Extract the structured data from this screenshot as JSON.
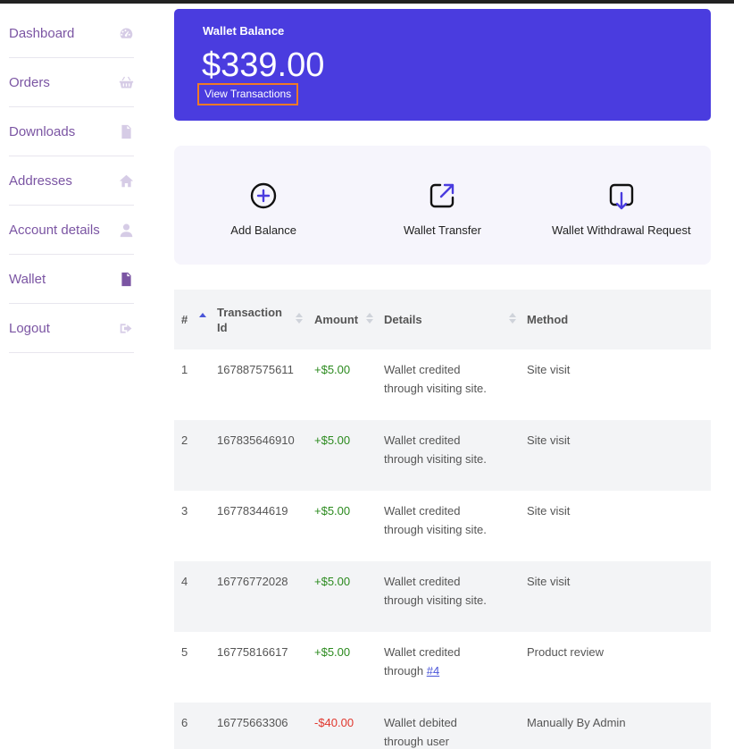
{
  "sidebar": {
    "items": [
      {
        "label": "Dashboard",
        "icon": "dashboard-gauge-icon"
      },
      {
        "label": "Orders",
        "icon": "basket-icon"
      },
      {
        "label": "Downloads",
        "icon": "file-download-icon"
      },
      {
        "label": "Addresses",
        "icon": "home-icon"
      },
      {
        "label": "Account details",
        "icon": "user-icon"
      },
      {
        "label": "Wallet",
        "icon": "file-icon",
        "active": true
      },
      {
        "label": "Logout",
        "icon": "sign-out-icon"
      }
    ]
  },
  "wallet": {
    "title": "Wallet Balance",
    "amount": "$339.00",
    "view_transactions": "View Transactions",
    "accent": "#4a3cdf"
  },
  "actions": [
    {
      "label": "Add Balance",
      "icon": "plus-circle-icon"
    },
    {
      "label": "Wallet Transfer",
      "icon": "transfer-icon"
    },
    {
      "label": "Wallet Withdrawal Request",
      "icon": "withdraw-icon"
    }
  ],
  "table": {
    "headers": {
      "num": "#",
      "tx_id": "Transaction Id",
      "amount": "Amount",
      "details": "Details",
      "method": "Method"
    },
    "rows": [
      {
        "num": "1",
        "tx_id": "167887575611",
        "amount": "+$5.00",
        "details_line1": "Wallet credited",
        "details_line2": "through visiting site.",
        "method": "Site visit"
      },
      {
        "num": "2",
        "tx_id": "167835646910",
        "amount": "+$5.00",
        "details_line1": "Wallet credited",
        "details_line2": "through visiting site.",
        "method": "Site visit"
      },
      {
        "num": "3",
        "tx_id": "16778344619",
        "amount": "+$5.00",
        "details_line1": "Wallet credited",
        "details_line2": "through visiting site.",
        "method": "Site visit"
      },
      {
        "num": "4",
        "tx_id": "16776772028",
        "amount": "+$5.00",
        "details_line1": "Wallet credited",
        "details_line2": "through visiting site.",
        "method": "Site visit"
      },
      {
        "num": "5",
        "tx_id": "16775816617",
        "amount": "+$5.00",
        "details_line1": "Wallet credited",
        "details_line2": "through",
        "details_link": "#4",
        "method": "Product review"
      },
      {
        "num": "6",
        "tx_id": "16775663306",
        "amount": "-$40.00",
        "details_line1": "Wallet debited",
        "details_line2": "through user",
        "method": "Manually By Admin"
      }
    ]
  },
  "colors": {
    "positive": "#2b8a1e",
    "negative": "#e0362c",
    "nav_text": "#7b55a3",
    "highlight_border": "#f07a26"
  }
}
